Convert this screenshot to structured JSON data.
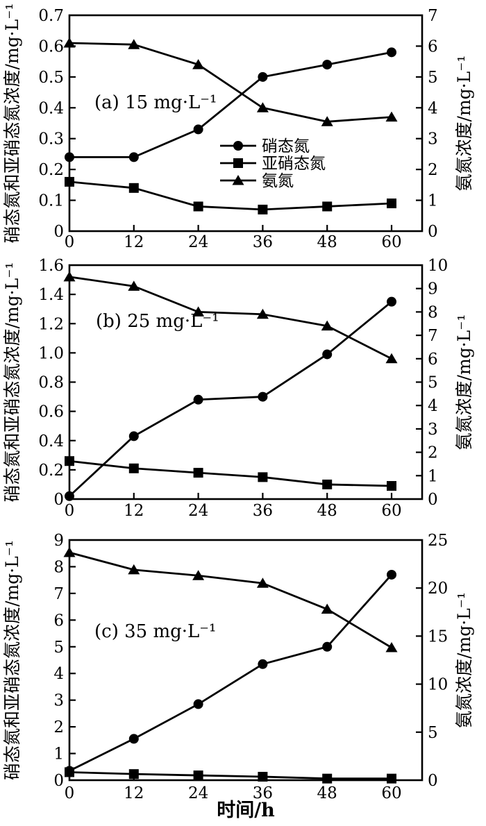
{
  "figure": {
    "xlabel": "时间/h",
    "ylabel_left": "硝态氮和亚硝态氮浓度/mg·L⁻¹",
    "ylabel_right": "氨氮浓度/mg·L⁻¹",
    "colors": {
      "foreground": "#000000",
      "background": "#ffffff"
    },
    "legend": {
      "position": "inside panel (a), center",
      "entries": [
        {
          "key": "nitrate",
          "marker": "circle",
          "label": "硝态氮"
        },
        {
          "key": "nitrite",
          "marker": "square",
          "label": "亚硝态氮"
        },
        {
          "key": "ammonia",
          "marker": "triangle",
          "label": "氨氮"
        }
      ]
    }
  },
  "chart_data": [
    {
      "type": "line",
      "panel_id": "a",
      "panel_label": "(a) 15 mg·L⁻¹",
      "x": [
        0,
        12,
        24,
        36,
        48,
        60
      ],
      "x_tick_labels": [
        "0",
        "12",
        "24",
        "36",
        "48",
        "60"
      ],
      "xlabel": "时间/h",
      "grid": false,
      "legend_visible": true,
      "left_axis": {
        "label": "硝态氮和亚硝态氮浓度/mg·L⁻¹",
        "min": 0,
        "max": 0.7,
        "tick_step": 0.1,
        "tick_labels": [
          "0",
          "0.1",
          "0.2",
          "0.3",
          "0.4",
          "0.5",
          "0.6",
          "0.7"
        ]
      },
      "right_axis": {
        "label": "氨氮浓度/mg·L⁻¹",
        "min": 0,
        "max": 7,
        "tick_step": 1,
        "tick_labels": [
          "0",
          "1",
          "2",
          "3",
          "4",
          "5",
          "6",
          "7"
        ]
      },
      "series": [
        {
          "key": "nitrate",
          "name": "硝态氮",
          "marker": "circle",
          "axis": "left",
          "values": [
            0.24,
            0.24,
            0.33,
            0.5,
            0.54,
            0.58
          ]
        },
        {
          "key": "nitrite",
          "name": "亚硝态氮",
          "marker": "square",
          "axis": "left",
          "values": [
            0.16,
            0.14,
            0.08,
            0.07,
            0.08,
            0.09
          ]
        },
        {
          "key": "ammonia",
          "name": "氨氮",
          "marker": "triangle",
          "axis": "right",
          "values": [
            6.1,
            6.05,
            5.4,
            4.0,
            3.55,
            3.7
          ]
        }
      ]
    },
    {
      "type": "line",
      "panel_id": "b",
      "panel_label": "(b) 25 mg·L⁻¹",
      "x": [
        0,
        12,
        24,
        36,
        48,
        60
      ],
      "x_tick_labels": [
        "0",
        "12",
        "24",
        "36",
        "48",
        "60"
      ],
      "xlabel": "时间/h",
      "grid": false,
      "legend_visible": false,
      "left_axis": {
        "label": "硝态氮和亚硝态氮浓度/mg·L⁻¹",
        "min": 0,
        "max": 1.6,
        "tick_step": 0.2,
        "tick_labels": [
          "0",
          "0.2",
          "0.4",
          "0.6",
          "0.8",
          "1.0",
          "1.2",
          "1.4",
          "1.6"
        ]
      },
      "right_axis": {
        "label": "氨氮浓度/mg·L⁻¹",
        "min": 0,
        "max": 10,
        "tick_step": 1,
        "tick_labels": [
          "0",
          "1",
          "2",
          "3",
          "4",
          "5",
          "6",
          "7",
          "8",
          "9",
          "10"
        ]
      },
      "series": [
        {
          "key": "nitrate",
          "name": "硝态氮",
          "marker": "circle",
          "axis": "left",
          "values": [
            0.02,
            0.43,
            0.68,
            0.7,
            0.99,
            1.35
          ]
        },
        {
          "key": "nitrite",
          "name": "亚硝态氮",
          "marker": "square",
          "axis": "left",
          "values": [
            0.26,
            0.21,
            0.18,
            0.15,
            0.1,
            0.09
          ]
        },
        {
          "key": "ammonia",
          "name": "氨氮",
          "marker": "triangle",
          "axis": "right",
          "values": [
            9.5,
            9.1,
            8.0,
            7.9,
            7.4,
            6.0
          ]
        }
      ]
    },
    {
      "type": "line",
      "panel_id": "c",
      "panel_label": "(c) 35 mg·L⁻¹",
      "x": [
        0,
        12,
        24,
        36,
        48,
        60
      ],
      "x_tick_labels": [
        "0",
        "12",
        "24",
        "36",
        "48",
        "60"
      ],
      "xlabel": "时间/h",
      "grid": false,
      "legend_visible": false,
      "left_axis": {
        "label": "硝态氮和亚硝态氮浓度/mg·L⁻¹",
        "min": 0,
        "max": 9,
        "tick_step": 1,
        "tick_labels": [
          "0",
          "1",
          "2",
          "3",
          "4",
          "5",
          "6",
          "7",
          "8",
          "9"
        ]
      },
      "right_axis": {
        "label": "氨氮浓度/mg·L⁻¹",
        "min": 0,
        "max": 25,
        "tick_step": 5,
        "tick_labels": [
          "0",
          "5",
          "10",
          "15",
          "20",
          "25"
        ]
      },
      "series": [
        {
          "key": "nitrate",
          "name": "硝态氮",
          "marker": "circle",
          "axis": "left",
          "values": [
            0.35,
            1.55,
            2.85,
            4.35,
            5.0,
            7.7
          ]
        },
        {
          "key": "nitrite",
          "name": "亚硝态氮",
          "marker": "square",
          "axis": "left",
          "values": [
            0.3,
            0.23,
            0.18,
            0.13,
            0.06,
            0.06
          ]
        },
        {
          "key": "ammonia",
          "name": "氨氮",
          "marker": "triangle",
          "axis": "right",
          "values": [
            23.7,
            21.9,
            21.3,
            20.5,
            17.8,
            13.8
          ]
        }
      ]
    }
  ]
}
